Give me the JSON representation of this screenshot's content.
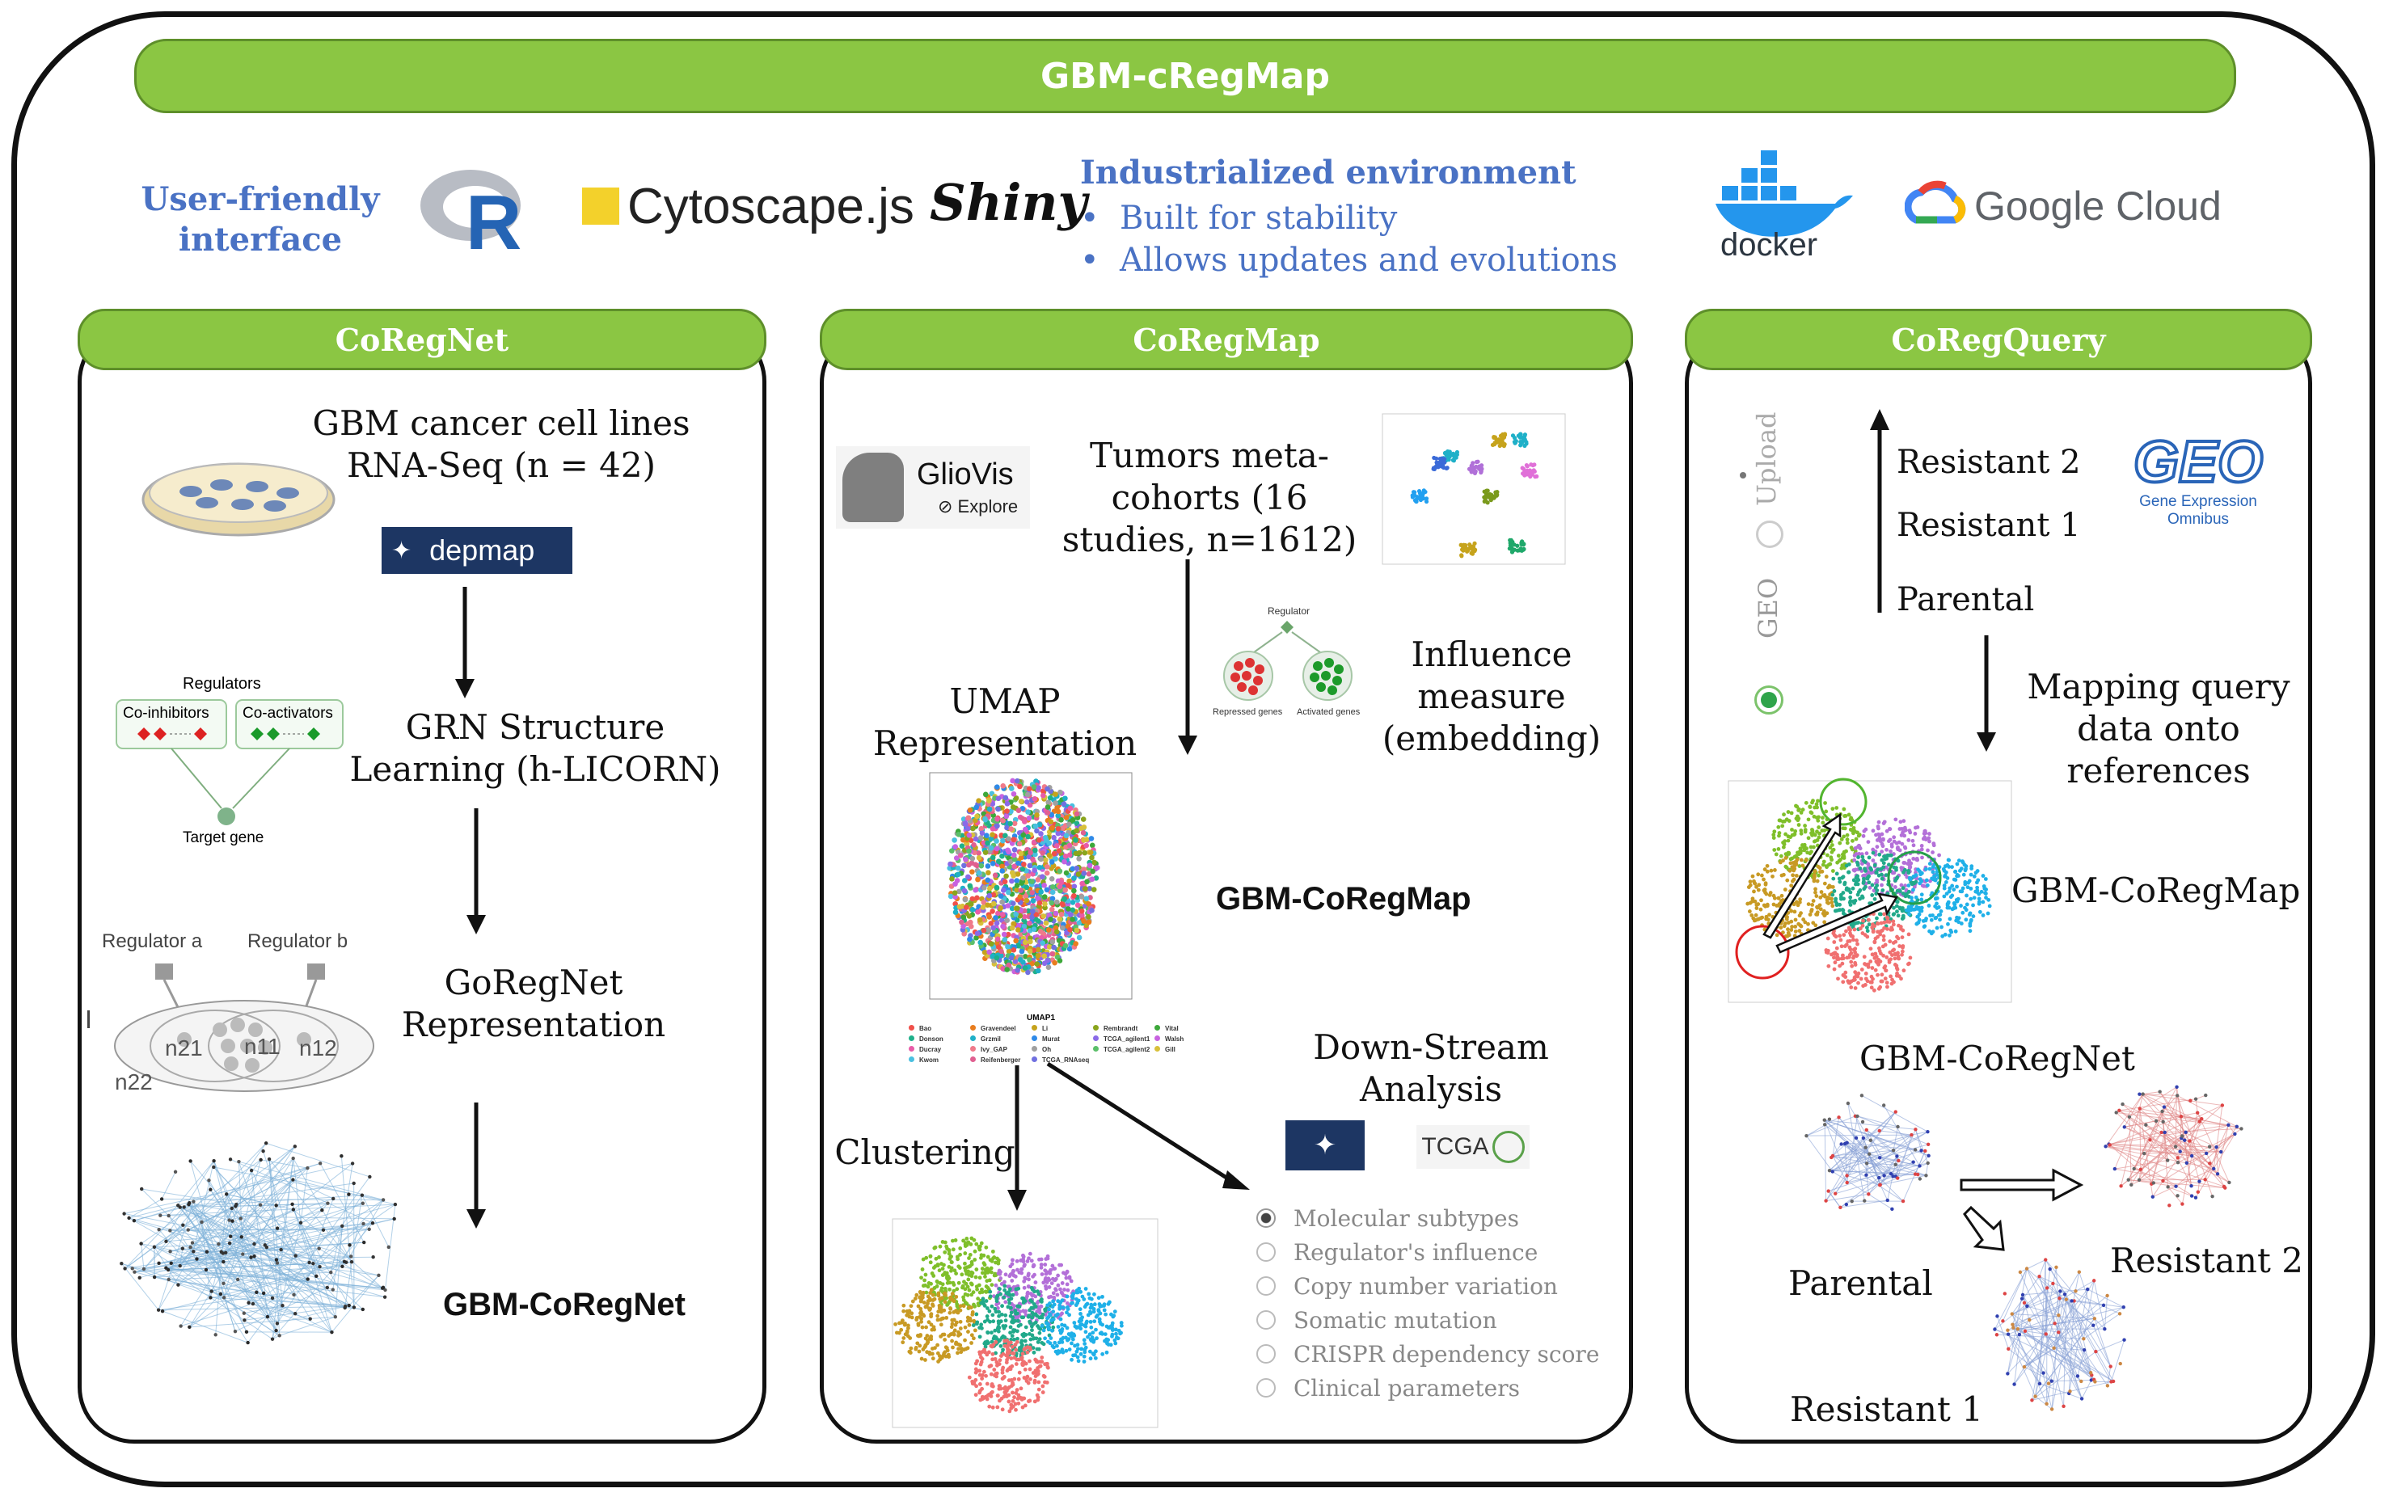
{
  "title": "GBM-cRegMap",
  "header": {
    "user_friendly": [
      "User-friendly",
      "interface"
    ],
    "r_logo": "R",
    "cytoscape": "Cytoscape.js",
    "shiny": "Shiny",
    "industrialized_title": "Industrialized environment",
    "bullets": [
      "Built for stability",
      "Allows updates and evolutions"
    ],
    "docker": "docker",
    "google_cloud": "Google Cloud"
  },
  "coregnet": {
    "title": "CoRegNet",
    "cell_lines": [
      "GBM cancer cell lines",
      "RNA-Seq (n = 42)"
    ],
    "depmap": "depmap",
    "regulators_label": "Regulators",
    "co_inhibitors": "Co-inhibitors",
    "co_activators": "Co-activators",
    "target_gene": "Target gene",
    "grn": [
      "GRN Structure",
      "Learning (h-LICORN)"
    ],
    "regulator_a": "Regulator a",
    "regulator_b": "Regulator b",
    "n21": "n21",
    "n11": "n11",
    "n12": "n12",
    "n22": "n22",
    "goregnet": [
      "GoRegNet",
      "Representation"
    ],
    "output": "GBM-CoRegNet"
  },
  "coregmap": {
    "title": "CoRegMap",
    "gliovis": "GlioVis",
    "explore": "Explore",
    "tumors": [
      "Tumors meta-",
      "cohorts (16",
      "studies, n=1612)"
    ],
    "regulator_label": "Regulator",
    "repressed": "Repressed genes",
    "activated": "Activated genes",
    "influence": [
      "Influence",
      "measure",
      "(embedding)"
    ],
    "umap": [
      "UMAP",
      "Representation"
    ],
    "output": "GBM-CoRegMap",
    "umap_xlabel": "UMAP1",
    "legend": [
      "Bao",
      "Gravendeel",
      "Li",
      "Rembrandt",
      "Vital",
      "Donson",
      "Grzmil",
      "Murat",
      "TCGA_agilent1",
      "Walsh",
      "Ducray",
      "Ivy_GAP",
      "Oh",
      "TCGA_agilent2",
      "Gill",
      "Kwom",
      "Reifenberger",
      "TCGA_RNAseq"
    ],
    "downstream": [
      "Down-Stream",
      "Analysis"
    ],
    "tcga": "TCGA",
    "clustering": "Clustering",
    "options": [
      "Molecular subtypes",
      "Regulator's influence",
      "Copy number variation",
      "Somatic mutation",
      "CRISPR dependency score",
      "Clinical parameters"
    ],
    "selected_option": "Molecular subtypes"
  },
  "coregquery": {
    "title": "CoRegQuery",
    "upload": "Upload",
    "geo_option": "GEO",
    "selected_source": "GEO",
    "stages": [
      "Resistant 2",
      "Resistant 1",
      "Parental"
    ],
    "geo_logo": "GEO",
    "geo_sub": "Gene Expression Omnibus",
    "mapping": [
      "Mapping query",
      "data onto",
      "references"
    ],
    "coregmap_label": "GBM-CoRegMap",
    "coregnet_label": "GBM-CoRegNet",
    "parental": "Parental",
    "resistant2": "Resistant 2",
    "resistant1": "Resistant 1"
  },
  "colors": {
    "green": "#8bc643",
    "blue_title": "#4a72c4",
    "depmap_bg": "#1d3663"
  }
}
